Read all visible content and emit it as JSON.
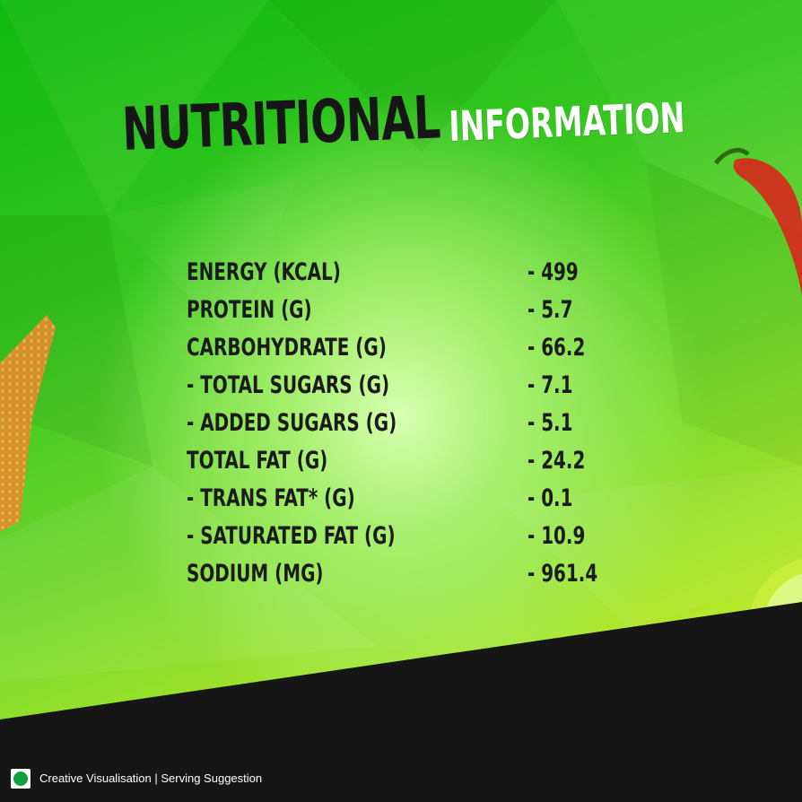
{
  "heading": {
    "primary": "NUTRITIONAL",
    "secondary": "INFORMATION"
  },
  "nutrients": [
    {
      "label": "ENERGY (KCAL)",
      "value": "- 499"
    },
    {
      "label": "PROTEIN (G)",
      "value": "- 5.7"
    },
    {
      "label": "CARBOHYDRATE (G)",
      "value": "- 66.2"
    },
    {
      "label": "- TOTAL SUGARS (G)",
      "value": "- 7.1"
    },
    {
      "label": "- ADDED SUGARS (G)",
      "value": "- 5.1"
    },
    {
      "label": "TOTAL FAT (G)",
      "value": "- 24.2"
    },
    {
      "label": "- TRANS FAT* (G)",
      "value": "- 0.1"
    },
    {
      "label": "- SATURATED FAT (G)",
      "value": "- 10.9"
    },
    {
      "label": "SODIUM (MG)",
      "value": "- 961.4"
    }
  ],
  "footer": {
    "icon": "veg-mark-icon",
    "note": "Creative Visualisation | Serving Suggestion"
  },
  "colors": {
    "background_green": "#2fc41c",
    "dark_band": "#161616",
    "text_dark": "#1b1b1b",
    "veg_mark": "#10a13a",
    "chilli_red": "#d8261c",
    "lime": "#c8ee3a"
  }
}
